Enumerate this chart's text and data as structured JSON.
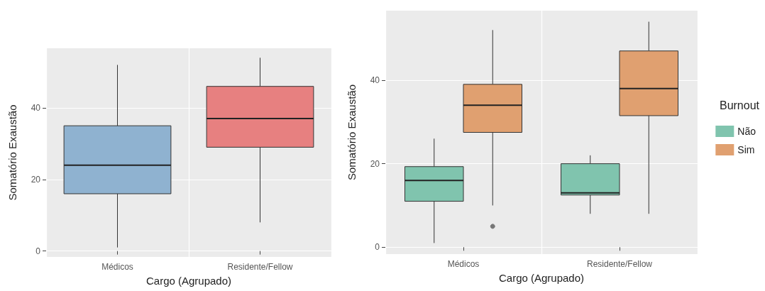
{
  "chart_data": [
    {
      "type": "box",
      "xlabel": "Cargo (Agrupado)",
      "ylabel": "Somatório Exaustão",
      "categories": [
        "Médicos",
        "Residente/Fellow"
      ],
      "colors": [
        "#8fb2d0",
        "#e78080"
      ],
      "boxes": [
        {
          "low": 1,
          "q1": 16,
          "median": 24,
          "q3": 35,
          "high": 52
        },
        {
          "low": 8,
          "q1": 29,
          "median": 37,
          "q3": 46,
          "high": 54
        }
      ],
      "ylim": [
        -1.65,
        56.65
      ],
      "yticks": [
        0,
        20,
        40
      ],
      "grid": true,
      "legend": false
    },
    {
      "type": "box",
      "xlabel": "Cargo (Agrupado)",
      "ylabel": "Somatório Exaustão",
      "categories": [
        "Médicos",
        "Residente/Fellow"
      ],
      "legend_title": "Burnout",
      "series": [
        {
          "name": "Não",
          "color": "#80c4ae",
          "boxes": [
            {
              "low": 1,
              "q1": 11,
              "median": 16,
              "q3": 19.3,
              "high": 26
            },
            {
              "low": 8,
              "q1": 12.5,
              "median": 13,
              "q3": 20,
              "high": 22
            }
          ]
        },
        {
          "name": "Sim",
          "color": "#e0a070",
          "boxes": [
            {
              "low": 10,
              "q1": 27.5,
              "median": 34,
              "q3": 39,
              "high": 52,
              "outliers": [
                5
              ]
            },
            {
              "low": 8,
              "q1": 31.5,
              "median": 38,
              "q3": 47,
              "high": 54
            }
          ]
        }
      ],
      "ylim": [
        -1.65,
        56.65
      ],
      "yticks": [
        0,
        20,
        40
      ],
      "grid": true,
      "legend": "right"
    }
  ]
}
